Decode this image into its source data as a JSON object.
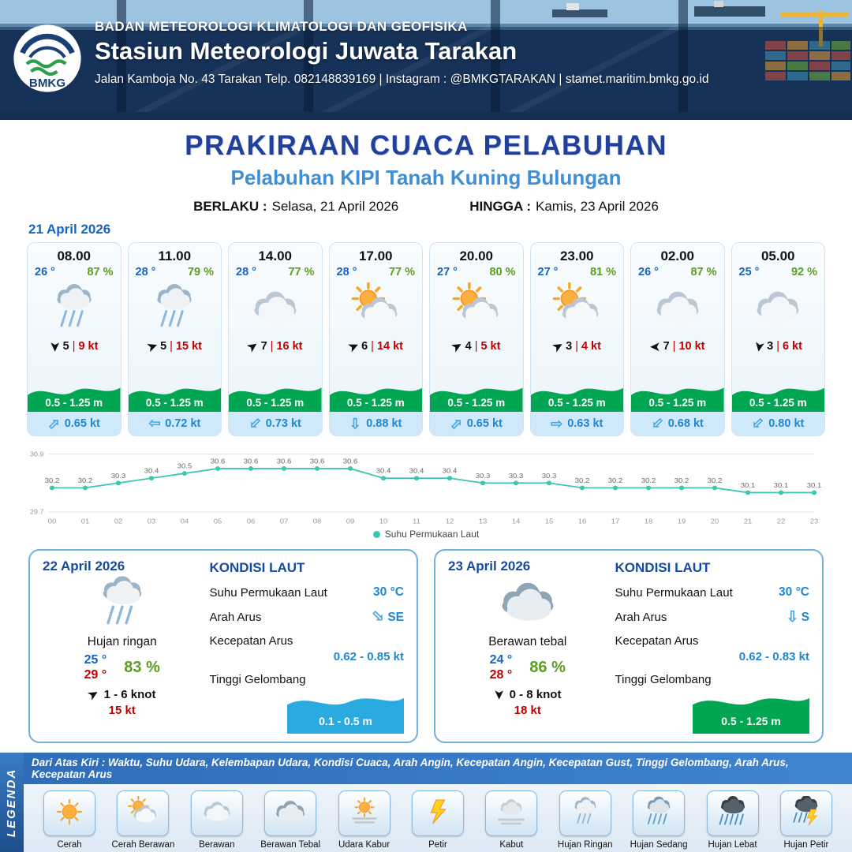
{
  "header": {
    "org": "BADAN METEOROLOGI KLIMATOLOGI DAN GEOFISIKA",
    "station": "Stasiun Meteorologi Juwata Tarakan",
    "contact": "Jalan Kamboja No. 43 Tarakan  Telp. 082148839169 | Instagram : @BMKGTARAKAN | stamet.maritim.bmkg.go.id",
    "logo_text": "BMKG"
  },
  "title": {
    "main": "PRAKIRAAN CUACA PELABUHAN",
    "sub": "Pelabuhan KIPI Tanah Kuning Bulungan",
    "berlaku_label": "BERLAKU :",
    "berlaku_value": "Selasa, 21 April 2026",
    "hingga_label": "HINGGA :",
    "hingga_value": "Kamis, 23 April 2026"
  },
  "colors": {
    "wave": "#00a651"
  },
  "day1": {
    "date": "21 April 2026",
    "cards": [
      {
        "time": "08.00",
        "temp": "26 °",
        "rh": "87 %",
        "icon": "rain-light",
        "wind_rot": 90,
        "wind": "5",
        "gust": "9 kt",
        "wave": "0.5 - 1.25 m",
        "cur_rot": -45,
        "cur": "0.65 kt"
      },
      {
        "time": "11.00",
        "temp": "28 °",
        "rh": "79 %",
        "icon": "rain-light",
        "wind_rot": -20,
        "wind": "5",
        "gust": "15 kt",
        "wave": "0.5 - 1.25 m",
        "cur_rot": 180,
        "cur": "0.72 kt"
      },
      {
        "time": "14.00",
        "temp": "28 °",
        "rh": "77 %",
        "icon": "cloud",
        "wind_rot": -35,
        "wind": "7",
        "gust": "16 kt",
        "wave": "0.5 - 1.25 m",
        "cur_rot": 135,
        "cur": "0.73 kt"
      },
      {
        "time": "17.00",
        "temp": "28 °",
        "rh": "77 %",
        "icon": "sun-cloud",
        "wind_rot": -25,
        "wind": "6",
        "gust": "14 kt",
        "wave": "0.5 - 1.25 m",
        "cur_rot": 90,
        "cur": "0.88 kt"
      },
      {
        "time": "20.00",
        "temp": "27 °",
        "rh": "80 %",
        "icon": "sun-cloud",
        "wind_rot": -30,
        "wind": "4",
        "gust": "5 kt",
        "wave": "0.5 - 1.25 m",
        "cur_rot": -45,
        "cur": "0.65 kt"
      },
      {
        "time": "23.00",
        "temp": "27 °",
        "rh": "81 %",
        "icon": "sun-cloud",
        "wind_rot": -30,
        "wind": "3",
        "gust": "4 kt",
        "wave": "0.5 - 1.25 m",
        "cur_rot": 0,
        "cur": "0.63 kt"
      },
      {
        "time": "02.00",
        "temp": "26 °",
        "rh": "87 %",
        "icon": "cloud",
        "wind_rot": 180,
        "wind": "7",
        "gust": "10 kt",
        "wave": "0.5 - 1.25 m",
        "cur_rot": 135,
        "cur": "0.68 kt"
      },
      {
        "time": "05.00",
        "temp": "25 °",
        "rh": "92 %",
        "icon": "cloud",
        "wind_rot": 100,
        "wind": "3",
        "gust": "6 kt",
        "wave": "0.5 - 1.25 m",
        "cur_rot": 135,
        "cur": "0.80 kt"
      }
    ]
  },
  "chart_data": {
    "type": "line",
    "legend": "Suhu Permukaan Laut",
    "x": [
      "00",
      "01",
      "02",
      "03",
      "04",
      "05",
      "06",
      "07",
      "08",
      "09",
      "10",
      "11",
      "12",
      "13",
      "14",
      "15",
      "16",
      "17",
      "18",
      "19",
      "20",
      "21",
      "22",
      "23"
    ],
    "values": [
      30.2,
      30.2,
      30.3,
      30.4,
      30.5,
      30.6,
      30.6,
      30.6,
      30.6,
      30.6,
      30.4,
      30.4,
      30.4,
      30.3,
      30.3,
      30.3,
      30.2,
      30.2,
      30.2,
      30.2,
      30.2,
      30.1,
      30.1,
      30.1
    ],
    "ylim": [
      29.7,
      30.9
    ],
    "line_color": "#3ec6b2",
    "xlabel": "",
    "ylabel": ""
  },
  "days": [
    {
      "date": "22 April 2026",
      "icon": "rain-light",
      "cond": "Hujan ringan",
      "tmin": "25 °",
      "tmax": "29 °",
      "rh": "83 %",
      "wind_rot": -30,
      "wind_range": "1 - 6 knot",
      "gust": "15 kt",
      "gel_color": "#29abe2",
      "sea": {
        "heading": "KONDISI LAUT",
        "sst_label": "Suhu Permukaan Laut",
        "sst": "30 °C",
        "arus_label": "Arah Arus",
        "arus_rot": 45,
        "arus_dir": "SE",
        "kec_label": "Kecepatan Arus",
        "kec": "0.62 - 0.85 kt",
        "gel_label": "Tinggi Gelombang",
        "gel": "0.1 - 0.5 m"
      }
    },
    {
      "date": "23 April 2026",
      "icon": "cloud-thick",
      "cond": "Berawan tebal",
      "tmin": "24 °",
      "tmax": "28 °",
      "rh": "86 %",
      "wind_rot": 90,
      "wind_range": "0 - 8 knot",
      "gust": "18 kt",
      "gel_color": "#00a651",
      "sea": {
        "heading": "KONDISI LAUT",
        "sst_label": "Suhu Permukaan Laut",
        "sst": "30 °C",
        "arus_label": "Arah Arus",
        "arus_rot": 90,
        "arus_dir": "S",
        "kec_label": "Kecepatan Arus",
        "kec": "0.62 - 0.83 kt",
        "gel_label": "Tinggi Gelombang",
        "gel": "0.5 - 1.25 m"
      }
    }
  ],
  "legend": {
    "title": "LEGENDA",
    "note": "Dari Atas Kiri : Waktu, Suhu Udara, Kelembapan Udara, Kondisi Cuaca, Arah Angin, Kecepatan Angin, Kecepatan Gust, Tinggi Gelombang, Arah Arus, Kecepatan Arus",
    "items": [
      {
        "label": "Cerah",
        "icon": "sun"
      },
      {
        "label": "Cerah Berawan",
        "icon": "sun-cloud"
      },
      {
        "label": "Berawan",
        "icon": "cloud"
      },
      {
        "label": "Berawan Tebal",
        "icon": "cloud-thick"
      },
      {
        "label": "Udara Kabur",
        "icon": "haze"
      },
      {
        "label": "Petir",
        "icon": "thunder"
      },
      {
        "label": "Kabut",
        "icon": "fog"
      },
      {
        "label": "Hujan Ringan",
        "icon": "rain-light"
      },
      {
        "label": "Hujan Sedang",
        "icon": "rain-medium"
      },
      {
        "label": "Hujan Lebat",
        "icon": "rain-heavy"
      },
      {
        "label": "Hujan Petir",
        "icon": "rain-thunder"
      }
    ]
  }
}
